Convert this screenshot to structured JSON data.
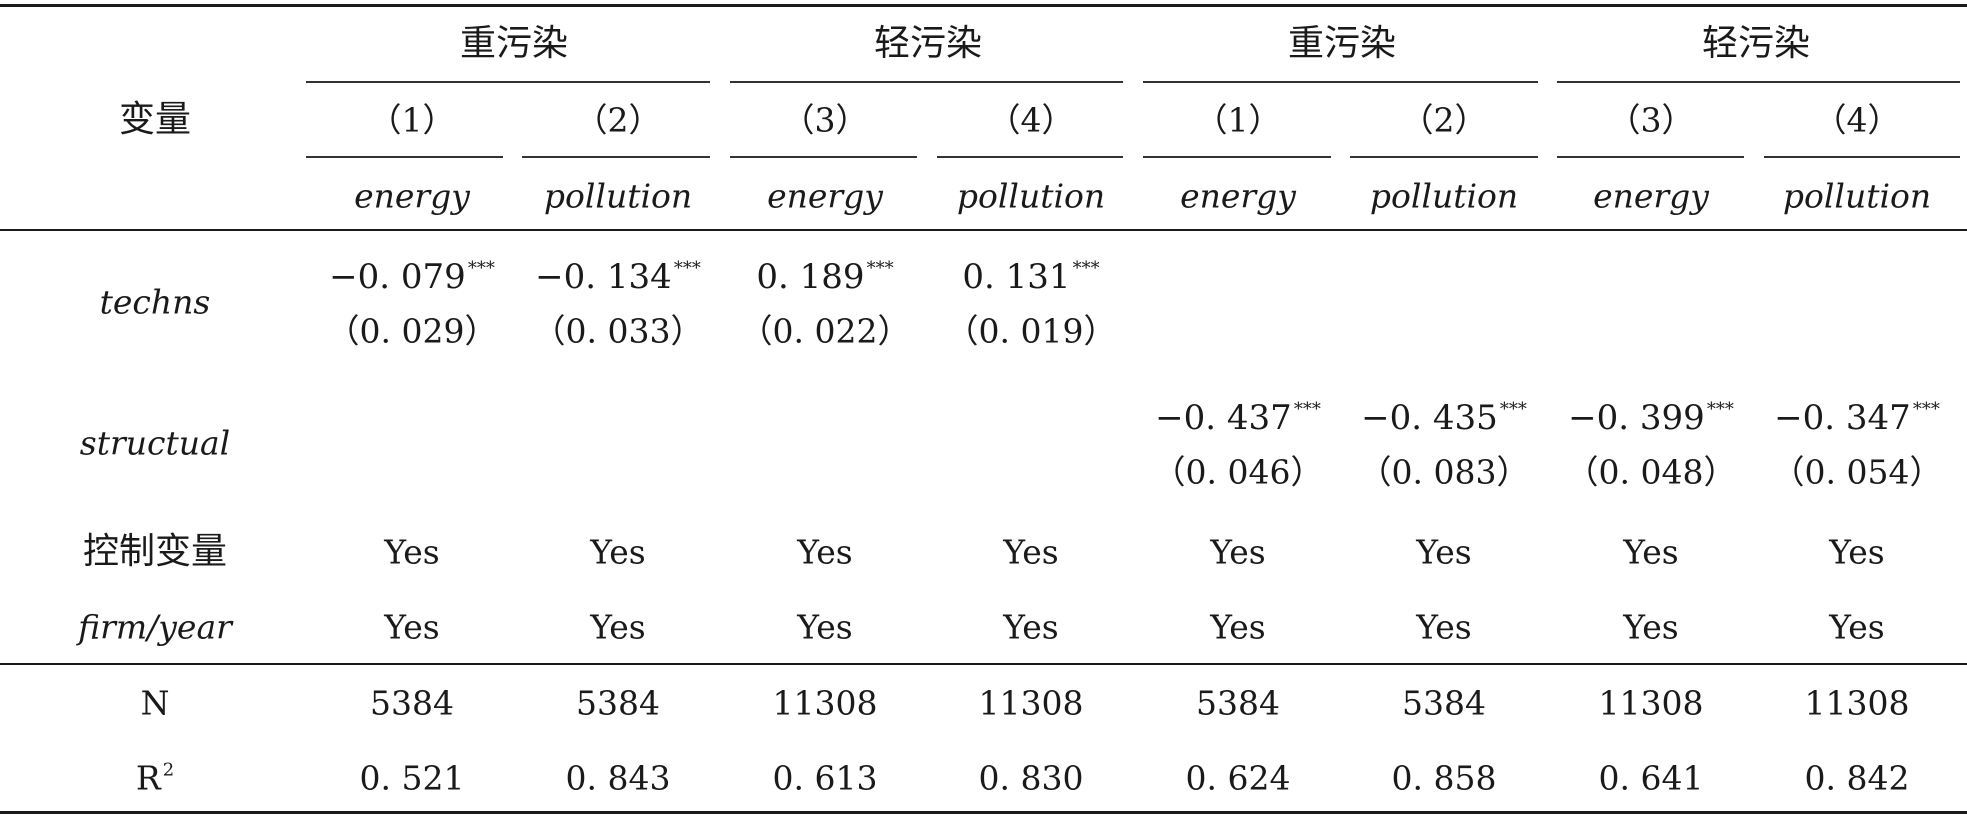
{
  "header": {
    "row_label": "变量",
    "groups": [
      "重污染",
      "轻污染",
      "重污染",
      "轻污染"
    ],
    "col_numbers": [
      "（1）",
      "（2）",
      "（3）",
      "（4）",
      "（1）",
      "（2）",
      "（3）",
      "（4）"
    ],
    "dep_vars": [
      "energy",
      "pollution",
      "energy",
      "pollution",
      "energy",
      "pollution",
      "energy",
      "pollution"
    ]
  },
  "rows": {
    "techns": {
      "label": "techns",
      "coefs": [
        "−0. 079",
        "−0. 134",
        "0. 189",
        "0. 131",
        "",
        "",
        "",
        ""
      ],
      "stars": [
        "***",
        "***",
        "***",
        "***",
        "",
        "",
        "",
        ""
      ],
      "ses": [
        "（0. 029）",
        "（0. 033）",
        "（0. 022）",
        "（0. 019）",
        "",
        "",
        "",
        ""
      ]
    },
    "structual": {
      "label": "structual",
      "coefs": [
        "",
        "",
        "",
        "",
        "−0. 437",
        "−0. 435",
        "−0. 399",
        "−0. 347"
      ],
      "stars": [
        "",
        "",
        "",
        "",
        "***",
        "***",
        "***",
        "***"
      ],
      "ses": [
        "",
        "",
        "",
        "",
        "（0. 046）",
        "（0. 083）",
        "（0. 048）",
        "（0. 054）"
      ]
    },
    "controls": {
      "label": "控制变量",
      "values": [
        "Yes",
        "Yes",
        "Yes",
        "Yes",
        "Yes",
        "Yes",
        "Yes",
        "Yes"
      ]
    },
    "fe": {
      "label": "firm/year",
      "values": [
        "Yes",
        "Yes",
        "Yes",
        "Yes",
        "Yes",
        "Yes",
        "Yes",
        "Yes"
      ]
    },
    "n": {
      "label": "N",
      "values": [
        "5384",
        "5384",
        "11308",
        "11308",
        "5384",
        "5384",
        "11308",
        "11308"
      ]
    },
    "r2": {
      "label": "R",
      "label_sup": "2",
      "values": [
        "0. 521",
        "0. 843",
        "0. 613",
        "0. 830",
        "0. 624",
        "0. 858",
        "0. 641",
        "0. 842"
      ]
    }
  }
}
